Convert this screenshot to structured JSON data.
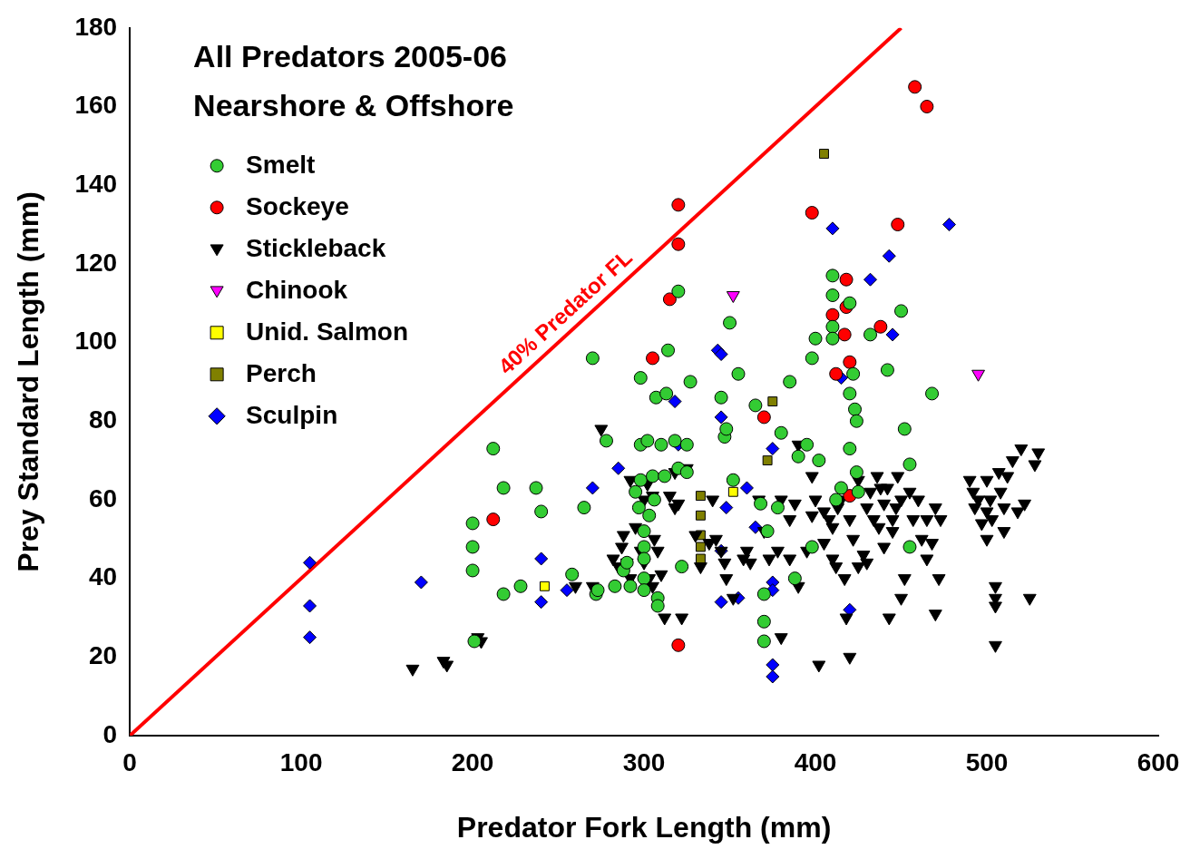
{
  "chart_data": {
    "type": "scatter",
    "title": "All Predators 2005-06",
    "subtitle": "Nearshore & Offshore",
    "x_label": "Predator Fork Length (mm)",
    "y_label": "Prey Standard Length (mm)",
    "xlim": [
      0,
      600
    ],
    "xticks": [
      0,
      100,
      200,
      300,
      400,
      500,
      600
    ],
    "ylim": [
      0,
      180
    ],
    "yticks": [
      0,
      20,
      40,
      60,
      80,
      100,
      120,
      140,
      160,
      180
    ],
    "grid": false,
    "legend": "upper left",
    "lines": [
      {
        "name": "40% Predator FL",
        "color": "#ff0000",
        "x": [
          0,
          450
        ],
        "y": [
          0,
          180
        ]
      }
    ],
    "series": [
      {
        "name": "Smelt",
        "color": "#33cc33",
        "marker": "circle",
        "values": [
          [
            200,
            54
          ],
          [
            200,
            48
          ],
          [
            200,
            42
          ],
          [
            201,
            24
          ],
          [
            212,
            73
          ],
          [
            218,
            63
          ],
          [
            218,
            36
          ],
          [
            228,
            38
          ],
          [
            237,
            63
          ],
          [
            240,
            57
          ],
          [
            258,
            41
          ],
          [
            265,
            58
          ],
          [
            270,
            96
          ],
          [
            272,
            36
          ],
          [
            273,
            37
          ],
          [
            278,
            75
          ],
          [
            283,
            38
          ],
          [
            288,
            42
          ],
          [
            290,
            44
          ],
          [
            292,
            38
          ],
          [
            295,
            62
          ],
          [
            297,
            58
          ],
          [
            298,
            91
          ],
          [
            298,
            74
          ],
          [
            298,
            65
          ],
          [
            300,
            52
          ],
          [
            300,
            48
          ],
          [
            300,
            45
          ],
          [
            300,
            40
          ],
          [
            300,
            37
          ],
          [
            302,
            75
          ],
          [
            303,
            56
          ],
          [
            305,
            66
          ],
          [
            306,
            60
          ],
          [
            307,
            86
          ],
          [
            308,
            35
          ],
          [
            308,
            33
          ],
          [
            310,
            74
          ],
          [
            312,
            66
          ],
          [
            313,
            87
          ],
          [
            314,
            98
          ],
          [
            318,
            75
          ],
          [
            320,
            113
          ],
          [
            320,
            68
          ],
          [
            322,
            43
          ],
          [
            325,
            74
          ],
          [
            325,
            67
          ],
          [
            327,
            90
          ],
          [
            345,
            86
          ],
          [
            347,
            76
          ],
          [
            348,
            78
          ],
          [
            350,
            105
          ],
          [
            352,
            65
          ],
          [
            355,
            92
          ],
          [
            365,
            84
          ],
          [
            368,
            59
          ],
          [
            370,
            36
          ],
          [
            370,
            29
          ],
          [
            370,
            24
          ],
          [
            372,
            52
          ],
          [
            378,
            58
          ],
          [
            380,
            77
          ],
          [
            385,
            90
          ],
          [
            388,
            40
          ],
          [
            390,
            71
          ],
          [
            395,
            74
          ],
          [
            398,
            48
          ],
          [
            398,
            96
          ],
          [
            400,
            101
          ],
          [
            402,
            70
          ],
          [
            410,
            117
          ],
          [
            410,
            112
          ],
          [
            410,
            104
          ],
          [
            410,
            101
          ],
          [
            412,
            60
          ],
          [
            415,
            63
          ],
          [
            420,
            110
          ],
          [
            420,
            87
          ],
          [
            420,
            73
          ],
          [
            422,
            92
          ],
          [
            423,
            83
          ],
          [
            424,
            80
          ],
          [
            424,
            67
          ],
          [
            425,
            62
          ],
          [
            432,
            102
          ],
          [
            442,
            93
          ],
          [
            450,
            108
          ],
          [
            452,
            78
          ],
          [
            455,
            69
          ],
          [
            455,
            48
          ],
          [
            468,
            87
          ]
        ]
      },
      {
        "name": "Sockeye",
        "color": "#ff0000",
        "marker": "circle",
        "values": [
          [
            212,
            55
          ],
          [
            305,
            96
          ],
          [
            315,
            111
          ],
          [
            320,
            135
          ],
          [
            320,
            125
          ],
          [
            320,
            23
          ],
          [
            370,
            81
          ],
          [
            398,
            133
          ],
          [
            410,
            107
          ],
          [
            412,
            92
          ],
          [
            417,
            102
          ],
          [
            418,
            109
          ],
          [
            418,
            116
          ],
          [
            420,
            95
          ],
          [
            420,
            61
          ],
          [
            438,
            104
          ],
          [
            448,
            130
          ],
          [
            458,
            165
          ],
          [
            465,
            160
          ]
        ]
      },
      {
        "name": "Stickleback",
        "color": "#000000",
        "marker": "triangle_down",
        "values": [
          [
            165,
            17
          ],
          [
            183,
            19
          ],
          [
            185,
            18
          ],
          [
            203,
            25
          ],
          [
            205,
            24
          ],
          [
            260,
            38
          ],
          [
            270,
            38
          ],
          [
            275,
            78
          ],
          [
            282,
            45
          ],
          [
            285,
            43
          ],
          [
            287,
            48
          ],
          [
            288,
            51
          ],
          [
            290,
            44
          ],
          [
            292,
            40
          ],
          [
            292,
            65
          ],
          [
            295,
            53
          ],
          [
            298,
            47
          ],
          [
            300,
            44
          ],
          [
            300,
            60
          ],
          [
            302,
            64
          ],
          [
            303,
            40
          ],
          [
            305,
            61
          ],
          [
            305,
            38
          ],
          [
            306,
            50
          ],
          [
            308,
            47
          ],
          [
            310,
            41
          ],
          [
            312,
            30
          ],
          [
            315,
            61
          ],
          [
            318,
            67
          ],
          [
            318,
            58
          ],
          [
            320,
            59
          ],
          [
            322,
            30
          ],
          [
            325,
            68
          ],
          [
            330,
            51
          ],
          [
            333,
            43
          ],
          [
            338,
            49
          ],
          [
            340,
            60
          ],
          [
            342,
            50
          ],
          [
            345,
            47
          ],
          [
            347,
            44
          ],
          [
            348,
            40
          ],
          [
            352,
            35
          ],
          [
            358,
            45
          ],
          [
            360,
            47
          ],
          [
            362,
            44
          ],
          [
            367,
            60
          ],
          [
            370,
            52
          ],
          [
            373,
            45
          ],
          [
            378,
            47
          ],
          [
            380,
            25
          ],
          [
            380,
            60
          ],
          [
            385,
            55
          ],
          [
            385,
            45
          ],
          [
            388,
            59
          ],
          [
            390,
            74
          ],
          [
            390,
            38
          ],
          [
            395,
            47
          ],
          [
            398,
            56
          ],
          [
            398,
            66
          ],
          [
            400,
            60
          ],
          [
            402,
            18
          ],
          [
            405,
            49
          ],
          [
            405,
            57
          ],
          [
            408,
            55
          ],
          [
            410,
            45
          ],
          [
            410,
            53
          ],
          [
            412,
            43
          ],
          [
            413,
            58
          ],
          [
            415,
            60
          ],
          [
            417,
            40
          ],
          [
            418,
            30
          ],
          [
            420,
            20
          ],
          [
            420,
            55
          ],
          [
            422,
            50
          ],
          [
            425,
            65
          ],
          [
            425,
            43
          ],
          [
            428,
            46
          ],
          [
            430,
            58
          ],
          [
            430,
            44
          ],
          [
            432,
            62
          ],
          [
            434,
            55
          ],
          [
            436,
            66
          ],
          [
            437,
            53
          ],
          [
            438,
            63
          ],
          [
            440,
            59
          ],
          [
            440,
            48
          ],
          [
            442,
            63
          ],
          [
            443,
            30
          ],
          [
            445,
            55
          ],
          [
            445,
            52
          ],
          [
            447,
            58
          ],
          [
            448,
            66
          ],
          [
            450,
            60
          ],
          [
            450,
            35
          ],
          [
            452,
            40
          ],
          [
            455,
            62
          ],
          [
            457,
            55
          ],
          [
            460,
            60
          ],
          [
            462,
            50
          ],
          [
            465,
            55
          ],
          [
            465,
            45
          ],
          [
            468,
            49
          ],
          [
            470,
            31
          ],
          [
            470,
            58
          ],
          [
            472,
            40
          ],
          [
            473,
            55
          ],
          [
            490,
            65
          ],
          [
            492,
            62
          ],
          [
            493,
            58
          ],
          [
            495,
            60
          ],
          [
            497,
            54
          ],
          [
            500,
            65
          ],
          [
            500,
            57
          ],
          [
            500,
            50
          ],
          [
            502,
            60
          ],
          [
            503,
            55
          ],
          [
            505,
            38
          ],
          [
            505,
            35
          ],
          [
            505,
            33
          ],
          [
            505,
            23
          ],
          [
            507,
            67
          ],
          [
            508,
            62
          ],
          [
            510,
            58
          ],
          [
            510,
            52
          ],
          [
            512,
            66
          ],
          [
            515,
            70
          ],
          [
            518,
            57
          ],
          [
            520,
            73
          ],
          [
            522,
            59
          ],
          [
            525,
            35
          ],
          [
            528,
            69
          ],
          [
            530,
            72
          ]
        ]
      },
      {
        "name": "Chinook",
        "color": "#ff00ff",
        "marker": "triangle_down",
        "values": [
          [
            352,
            112
          ],
          [
            495,
            92
          ]
        ]
      },
      {
        "name": "Unid. Salmon",
        "color": "#ffff00",
        "marker": "square",
        "values": [
          [
            242,
            38
          ],
          [
            352,
            62
          ]
        ]
      },
      {
        "name": "Perch",
        "color": "#808000",
        "marker": "square",
        "values": [
          [
            333,
            61
          ],
          [
            333,
            56
          ],
          [
            333,
            51
          ],
          [
            333,
            48
          ],
          [
            333,
            45
          ],
          [
            372,
            70
          ],
          [
            375,
            85
          ],
          [
            405,
            148
          ]
        ]
      },
      {
        "name": "Sculpin",
        "color": "#0000ff",
        "marker": "diamond",
        "values": [
          [
            105,
            44
          ],
          [
            105,
            33
          ],
          [
            105,
            25
          ],
          [
            170,
            39
          ],
          [
            240,
            45
          ],
          [
            240,
            34
          ],
          [
            255,
            37
          ],
          [
            270,
            63
          ],
          [
            285,
            68
          ],
          [
            318,
            85
          ],
          [
            320,
            74
          ],
          [
            343,
            98
          ],
          [
            345,
            97
          ],
          [
            345,
            81
          ],
          [
            345,
            47
          ],
          [
            345,
            34
          ],
          [
            348,
            58
          ],
          [
            355,
            35
          ],
          [
            360,
            63
          ],
          [
            365,
            53
          ],
          [
            375,
            73
          ],
          [
            375,
            39
          ],
          [
            375,
            37
          ],
          [
            375,
            18
          ],
          [
            375,
            15
          ],
          [
            410,
            129
          ],
          [
            415,
            91
          ],
          [
            420,
            32
          ],
          [
            432,
            116
          ],
          [
            443,
            122
          ],
          [
            445,
            102
          ],
          [
            478,
            130
          ]
        ]
      }
    ]
  }
}
